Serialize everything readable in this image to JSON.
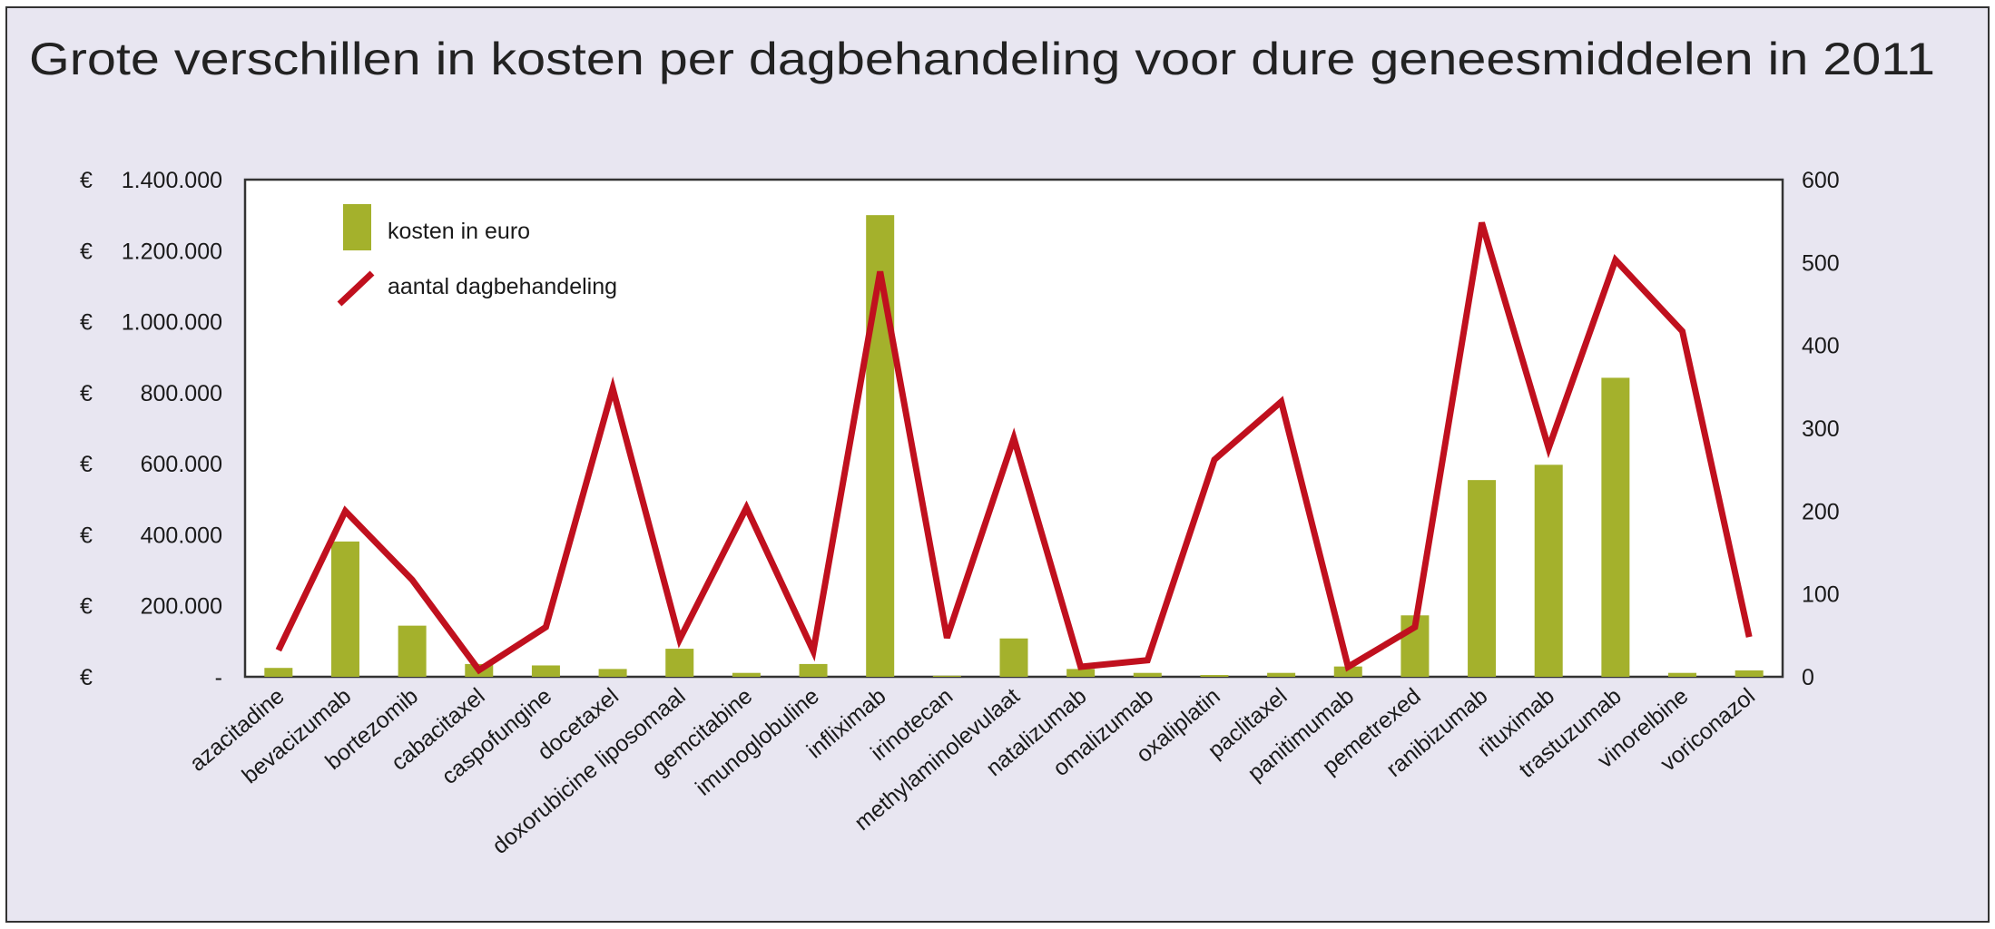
{
  "chart_data": {
    "type": "bar+line",
    "title": "Grote verschillen in kosten per dagbehandeling voor dure geneesmiddelen in 2011",
    "categories": [
      "azacitadine",
      "bevacizumab",
      "bortezomib",
      "cabacitaxel",
      "caspofungine",
      "docetaxel",
      "doxorubicine liposomaal",
      "gemcitabine",
      "imunoglobuline",
      "infliximab",
      "irinotecan",
      "methylaminolevulaat",
      "natalizumab",
      "omalizumab",
      "oxaliplatin",
      "paclitaxel",
      "panitimumab",
      "pemetrexed",
      "ranibizumab",
      "rituximab",
      "trastuzumab",
      "vinorelbine",
      "voriconazol"
    ],
    "series": [
      {
        "name": "kosten in euro",
        "type": "bar",
        "axis": "left",
        "color": "#a4b12c",
        "values": [
          25000,
          381000,
          144000,
          36000,
          32000,
          22000,
          79000,
          11000,
          36000,
          1300000,
          3000,
          108000,
          22000,
          11000,
          5000,
          11000,
          29000,
          173000,
          554000,
          597000,
          842000,
          11000,
          18000
        ]
      },
      {
        "name": "aantal dagbehandeling",
        "type": "line",
        "axis": "right",
        "color": "#c0101e",
        "values": [
          32,
          200,
          117,
          8,
          60,
          348,
          45,
          204,
          31,
          489,
          47,
          288,
          12,
          20,
          262,
          332,
          12,
          60,
          548,
          276,
          503,
          417,
          48
        ]
      }
    ],
    "y_left": {
      "range": [
        0,
        1400000
      ],
      "currency": "€",
      "ticks": [
        {
          "value": 0,
          "label": "-"
        },
        {
          "value": 200000,
          "label": "200.000"
        },
        {
          "value": 400000,
          "label": "400.000"
        },
        {
          "value": 600000,
          "label": "600.000"
        },
        {
          "value": 800000,
          "label": "800.000"
        },
        {
          "value": 1000000,
          "label": "1.000.000"
        },
        {
          "value": 1200000,
          "label": "1.200.000"
        },
        {
          "value": 1400000,
          "label": "1.400.000"
        }
      ]
    },
    "y_right": {
      "range": [
        0,
        600
      ],
      "ticks": [
        {
          "value": 0,
          "label": "0"
        },
        {
          "value": 100,
          "label": "100"
        },
        {
          "value": 200,
          "label": "200"
        },
        {
          "value": 300,
          "label": "300"
        },
        {
          "value": 400,
          "label": "400"
        },
        {
          "value": 500,
          "label": "500"
        },
        {
          "value": 600,
          "label": "600"
        }
      ]
    },
    "legend": {
      "placement": "top-left",
      "items": [
        "kosten in euro",
        "aantal dagbehandeling"
      ]
    },
    "grid": false
  }
}
